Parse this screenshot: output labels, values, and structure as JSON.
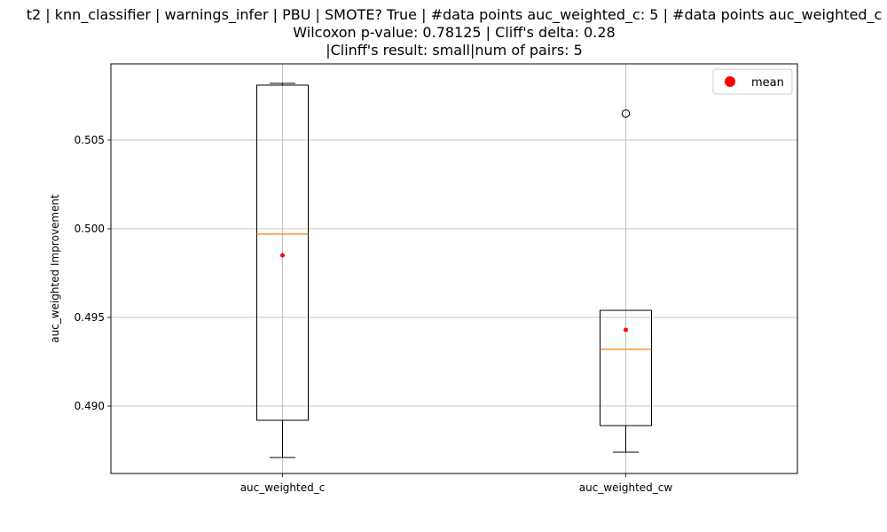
{
  "chart_data": {
    "type": "box",
    "title_lines": [
      "t2 | knn_classifier | warnings_infer | PBU | SMOTE? True | #data points auc_weighted_c: 5 | #data points auc_weighted_c",
      "Wilcoxon p-value: 0.78125 | Cliff's delta: 0.28",
      "|Clinff's result: small|num of pairs: 5"
    ],
    "ylabel": "auc_weighted Improvement",
    "xlabel": "",
    "ylim": [
      0.4862,
      0.5093
    ],
    "yticks": [
      0.49,
      0.495,
      0.5,
      0.505
    ],
    "ytick_labels": [
      "0.490",
      "0.495",
      "0.500",
      "0.505"
    ],
    "grid": true,
    "legend": {
      "position": "top-right",
      "entries": [
        {
          "label": "mean",
          "color": "#ff0000",
          "marker": "circle"
        }
      ]
    },
    "categories": [
      "auc_weighted_c",
      "auc_weighted_cw"
    ],
    "boxes": [
      {
        "name": "auc_weighted_c",
        "whisker_low": 0.4871,
        "q1": 0.4892,
        "median": 0.4997,
        "q3": 0.5081,
        "whisker_high": 0.5082,
        "mean": 0.4985,
        "outliers": []
      },
      {
        "name": "auc_weighted_cw",
        "whisker_low": 0.4874,
        "q1": 0.4889,
        "median": 0.4932,
        "q3": 0.4954,
        "whisker_high": 0.4954,
        "mean": 0.4943,
        "outliers": [
          0.5065
        ]
      }
    ],
    "colors": {
      "box": "#000000",
      "median": "#ff7f0e",
      "mean": "#ff0000",
      "grid": "#b0b0b0"
    }
  }
}
